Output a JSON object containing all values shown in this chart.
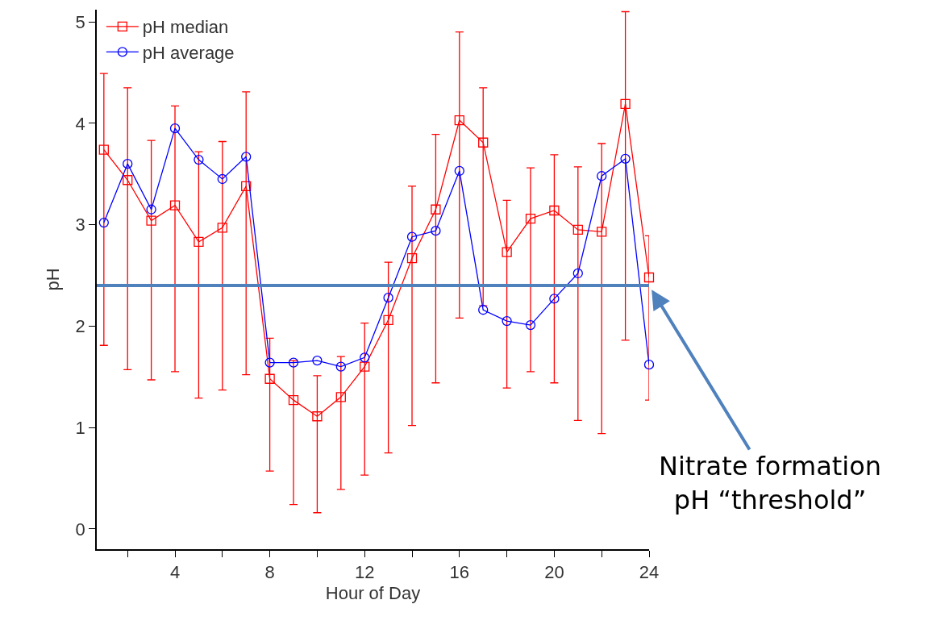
{
  "chart_data": {
    "type": "line",
    "xlabel": "Hour of Day",
    "ylabel": "pH",
    "x": [
      1,
      2,
      3,
      4,
      5,
      6,
      7,
      8,
      9,
      10,
      11,
      12,
      13,
      14,
      15,
      16,
      17,
      18,
      19,
      20,
      21,
      22,
      23,
      24
    ],
    "xlim": [
      0.7,
      24
    ],
    "ylim": [
      -0.2,
      5.12
    ],
    "xticks": [
      {
        "value": 2,
        "label": null
      },
      4,
      {
        "value": 6,
        "label": null
      },
      8,
      {
        "value": 10,
        "label": null
      },
      12,
      {
        "value": 14,
        "label": null
      },
      16,
      {
        "value": 18,
        "label": null
      },
      20,
      {
        "value": 22,
        "label": null
      },
      24
    ],
    "yticks": [
      0,
      1,
      2,
      3,
      4,
      5
    ],
    "series": [
      {
        "name": "pH median",
        "color": "#ff0000",
        "marker": "square",
        "values": [
          3.74,
          3.44,
          3.04,
          3.19,
          2.83,
          2.97,
          3.38,
          1.48,
          1.27,
          1.11,
          1.3,
          1.6,
          2.06,
          2.67,
          3.15,
          4.03,
          3.81,
          2.73,
          3.06,
          3.14,
          2.95,
          2.93,
          4.19,
          2.48
        ],
        "errors": [
          [
            1.81,
            4.49
          ],
          [
            1.57,
            4.35
          ],
          [
            1.47,
            3.83
          ],
          [
            1.55,
            4.17
          ],
          [
            1.29,
            3.72
          ],
          [
            1.37,
            3.82
          ],
          [
            1.52,
            4.31
          ],
          [
            0.57,
            1.88
          ],
          [
            0.24,
            1.66
          ],
          [
            0.16,
            1.51
          ],
          [
            0.39,
            1.7
          ],
          [
            0.53,
            2.03
          ],
          [
            0.75,
            2.63
          ],
          [
            1.02,
            3.38
          ],
          [
            1.44,
            3.89
          ],
          [
            2.08,
            4.9
          ],
          [
            2.2,
            4.35
          ],
          [
            1.39,
            3.24
          ],
          [
            1.55,
            3.56
          ],
          [
            1.44,
            3.69
          ],
          [
            1.07,
            3.57
          ],
          [
            0.94,
            3.8
          ],
          [
            1.86,
            5.1
          ],
          [
            1.27,
            2.89
          ]
        ]
      },
      {
        "name": "pH average",
        "color": "#0000ff",
        "marker": "circle",
        "values": [
          3.02,
          3.6,
          3.15,
          3.95,
          3.64,
          3.45,
          3.67,
          1.64,
          1.64,
          1.66,
          1.6,
          1.69,
          2.28,
          2.88,
          2.94,
          3.53,
          2.16,
          2.05,
          2.01,
          2.27,
          2.52,
          3.48,
          3.65,
          1.62
        ]
      }
    ],
    "ref_lines": [
      {
        "axis": "y",
        "value": 2.4,
        "label": "Nitrate formation\npH “threshold”",
        "color": "#4f81bd"
      }
    ],
    "legend": "top left"
  }
}
